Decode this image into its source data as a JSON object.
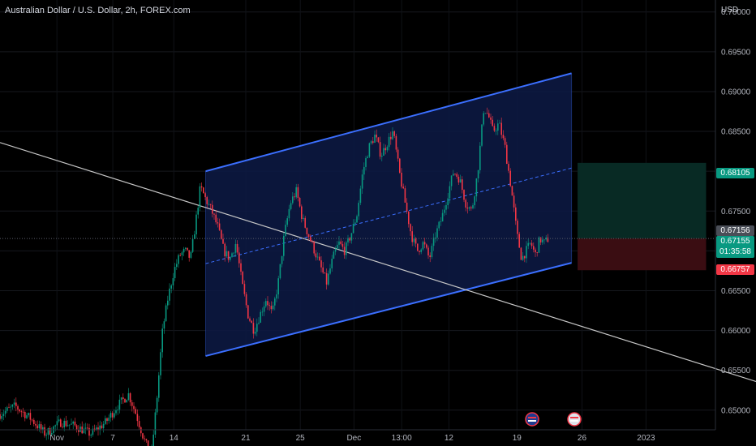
{
  "header": {
    "symbol_title": "Australian Dollar / U.S. Dollar, 2h, FOREX.com",
    "currency": "USD"
  },
  "price_tags": {
    "target": "0.68105",
    "last_close": "0.67156",
    "current": "0.67155",
    "countdown": "01:35:58",
    "stop": "0.66757"
  },
  "colors": {
    "background": "#000000",
    "channel_line": "#3b6fff",
    "channel_fill": "#0d1a45",
    "trend_line": "#c8c8c8",
    "up_candle": "#089981",
    "down_candle": "#f23645",
    "profit_zone": "#082a24",
    "loss_zone": "#3a0d12"
  },
  "event_icons": [
    "australia-flag-icon",
    "us-flag-icon"
  ],
  "chart_data": {
    "type": "candlestick",
    "y_axis": {
      "min": 0.6455,
      "max": 0.7015,
      "ticks": [
        "0.70000",
        "0.69500",
        "0.69000",
        "0.68500",
        "0.68000",
        "0.67500",
        "0.67000",
        "0.66500",
        "0.66000",
        "0.65500",
        "0.65000"
      ]
    },
    "x_axis": {
      "ticks": [
        {
          "label": "Nov",
          "t": 0.0753
        },
        {
          "label": "7",
          "t": 0.1492
        },
        {
          "label": "14",
          "t": 0.2299
        },
        {
          "label": "21",
          "t": 0.3251
        },
        {
          "label": "25",
          "t": 0.3972
        },
        {
          "label": "Dec",
          "t": 0.4682
        },
        {
          "label": "13:00",
          "t": 0.5313
        },
        {
          "label": "12",
          "t": 0.5938
        },
        {
          "label": "19",
          "t": 0.6838
        },
        {
          "label": "26",
          "t": 0.7698
        },
        {
          "label": "2023",
          "t": 0.8545
        }
      ]
    },
    "price_path": [
      {
        "t": 0.0,
        "p": 0.6495
      },
      {
        "t": 0.02,
        "p": 0.6505
      },
      {
        "t": 0.04,
        "p": 0.649
      },
      {
        "t": 0.06,
        "p": 0.647
      },
      {
        "t": 0.08,
        "p": 0.6485
      },
      {
        "t": 0.1,
        "p": 0.648
      },
      {
        "t": 0.12,
        "p": 0.647
      },
      {
        "t": 0.14,
        "p": 0.6485
      },
      {
        "t": 0.155,
        "p": 0.6505
      },
      {
        "t": 0.17,
        "p": 0.652
      },
      {
        "t": 0.18,
        "p": 0.6495
      },
      {
        "t": 0.19,
        "p": 0.6465
      },
      {
        "t": 0.2,
        "p": 0.644
      },
      {
        "t": 0.208,
        "p": 0.652
      },
      {
        "t": 0.215,
        "p": 0.66
      },
      {
        "t": 0.222,
        "p": 0.664
      },
      {
        "t": 0.23,
        "p": 0.6675
      },
      {
        "t": 0.238,
        "p": 0.6695
      },
      {
        "t": 0.245,
        "p": 0.67
      },
      {
        "t": 0.252,
        "p": 0.669
      },
      {
        "t": 0.258,
        "p": 0.673
      },
      {
        "t": 0.265,
        "p": 0.678
      },
      {
        "t": 0.272,
        "p": 0.6765
      },
      {
        "t": 0.28,
        "p": 0.675
      },
      {
        "t": 0.288,
        "p": 0.673
      },
      {
        "t": 0.296,
        "p": 0.67
      },
      {
        "t": 0.304,
        "p": 0.669
      },
      {
        "t": 0.312,
        "p": 0.671
      },
      {
        "t": 0.32,
        "p": 0.666
      },
      {
        "t": 0.328,
        "p": 0.662
      },
      {
        "t": 0.336,
        "p": 0.66
      },
      {
        "t": 0.344,
        "p": 0.662
      },
      {
        "t": 0.352,
        "p": 0.664
      },
      {
        "t": 0.36,
        "p": 0.662
      },
      {
        "t": 0.368,
        "p": 0.666
      },
      {
        "t": 0.376,
        "p": 0.672
      },
      {
        "t": 0.384,
        "p": 0.676
      },
      {
        "t": 0.392,
        "p": 0.6775
      },
      {
        "t": 0.4,
        "p": 0.674
      },
      {
        "t": 0.408,
        "p": 0.672
      },
      {
        "t": 0.416,
        "p": 0.67
      },
      {
        "t": 0.424,
        "p": 0.668
      },
      {
        "t": 0.432,
        "p": 0.666
      },
      {
        "t": 0.44,
        "p": 0.669
      },
      {
        "t": 0.448,
        "p": 0.671
      },
      {
        "t": 0.456,
        "p": 0.67
      },
      {
        "t": 0.464,
        "p": 0.672
      },
      {
        "t": 0.472,
        "p": 0.6745
      },
      {
        "t": 0.48,
        "p": 0.68
      },
      {
        "t": 0.488,
        "p": 0.683
      },
      {
        "t": 0.496,
        "p": 0.6845
      },
      {
        "t": 0.504,
        "p": 0.682
      },
      {
        "t": 0.512,
        "p": 0.6835
      },
      {
        "t": 0.52,
        "p": 0.685
      },
      {
        "t": 0.528,
        "p": 0.68
      },
      {
        "t": 0.536,
        "p": 0.676
      },
      {
        "t": 0.544,
        "p": 0.672
      },
      {
        "t": 0.552,
        "p": 0.67
      },
      {
        "t": 0.56,
        "p": 0.671
      },
      {
        "t": 0.568,
        "p": 0.669
      },
      {
        "t": 0.576,
        "p": 0.672
      },
      {
        "t": 0.584,
        "p": 0.674
      },
      {
        "t": 0.592,
        "p": 0.677
      },
      {
        "t": 0.6,
        "p": 0.68
      },
      {
        "t": 0.608,
        "p": 0.679
      },
      {
        "t": 0.616,
        "p": 0.676
      },
      {
        "t": 0.624,
        "p": 0.675
      },
      {
        "t": 0.632,
        "p": 0.68
      },
      {
        "t": 0.64,
        "p": 0.688
      },
      {
        "t": 0.646,
        "p": 0.687
      },
      {
        "t": 0.652,
        "p": 0.685
      },
      {
        "t": 0.66,
        "p": 0.686
      },
      {
        "t": 0.668,
        "p": 0.683
      },
      {
        "t": 0.676,
        "p": 0.678
      },
      {
        "t": 0.684,
        "p": 0.672
      },
      {
        "t": 0.69,
        "p": 0.669
      },
      {
        "t": 0.696,
        "p": 0.67
      },
      {
        "t": 0.702,
        "p": 0.671
      },
      {
        "t": 0.708,
        "p": 0.6695
      },
      {
        "t": 0.714,
        "p": 0.6715
      },
      {
        "t": 0.72,
        "p": 0.671
      },
      {
        "t": 0.726,
        "p": 0.6716
      }
    ],
    "channel": {
      "upper": [
        {
          "t": 0.272,
          "p": 0.68
        },
        {
          "t": 0.756,
          "p": 0.6923
        }
      ],
      "lower": [
        {
          "t": 0.272,
          "p": 0.6568
        },
        {
          "t": 0.756,
          "p": 0.6685
        }
      ]
    },
    "trend_line": [
      {
        "t": 0.0,
        "p": 0.6836
      },
      {
        "t": 1.0,
        "p": 0.6536
      }
    ],
    "position": {
      "t_start": 0.764,
      "t_end": 0.934,
      "entry": 0.67156,
      "target": 0.68105,
      "stop": 0.66757
    }
  }
}
